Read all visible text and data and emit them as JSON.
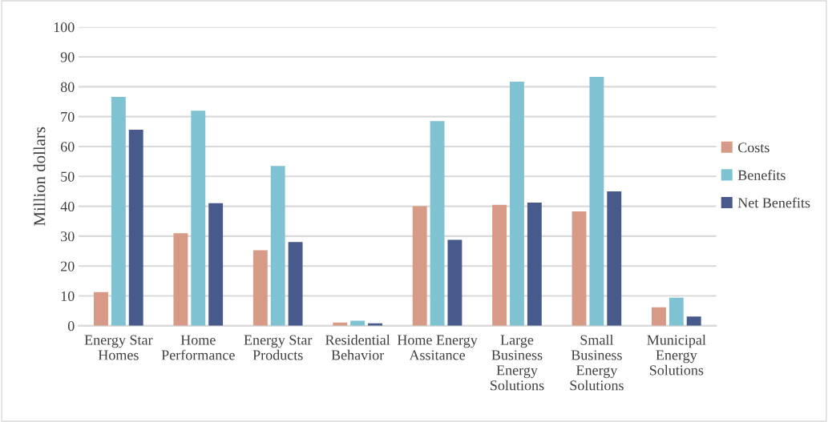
{
  "chart_data": {
    "type": "bar",
    "ylabel": "Million dollars",
    "categories": [
      "Energy Star Homes",
      "Home Performance",
      "Energy Star Products",
      "Residential Behavior",
      "Home Energy Assitance",
      "Large Business Energy Solutions",
      "Small Business Energy Solutions",
      "Municipal Energy Solutions"
    ],
    "series": [
      {
        "name": "Costs",
        "color": "#d69a87",
        "values": [
          11.3,
          31,
          25.3,
          1.1,
          40,
          40.5,
          38.3,
          6.2
        ]
      },
      {
        "name": "Benefits",
        "color": "#7fc3d3",
        "values": [
          76.6,
          72,
          53.5,
          1.7,
          68.5,
          81.7,
          83.3,
          9.4
        ]
      },
      {
        "name": "Net Benefits",
        "color": "#475a8b",
        "values": [
          65.6,
          41,
          28,
          0.8,
          28.8,
          41.2,
          45,
          3.1
        ]
      }
    ],
    "ylim": [
      0,
      100
    ],
    "yticks": [
      0,
      10,
      20,
      30,
      40,
      50,
      60,
      70,
      80,
      90,
      100
    ],
    "grid": "y",
    "legend": "right"
  }
}
